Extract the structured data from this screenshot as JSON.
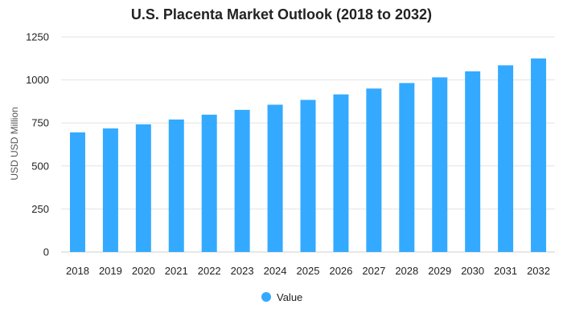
{
  "chart_data": {
    "type": "bar",
    "title": "U.S. Placenta Market Outlook (2018 to 2032)",
    "xlabel": "",
    "ylabel": "USD USD Million",
    "categories": [
      "2018",
      "2019",
      "2020",
      "2021",
      "2022",
      "2023",
      "2024",
      "2025",
      "2026",
      "2027",
      "2028",
      "2029",
      "2030",
      "2031",
      "2032"
    ],
    "series": [
      {
        "name": "Value",
        "color": "#33aaff",
        "values": [
          695,
          718,
          742,
          770,
          798,
          826,
          856,
          884,
          916,
          950,
          982,
          1015,
          1050,
          1085,
          1125
        ]
      }
    ],
    "ylim": [
      0,
      1250
    ],
    "yticks": [
      0,
      250,
      500,
      750,
      1000,
      1250
    ],
    "grid": true,
    "legend_position": "bottom"
  }
}
